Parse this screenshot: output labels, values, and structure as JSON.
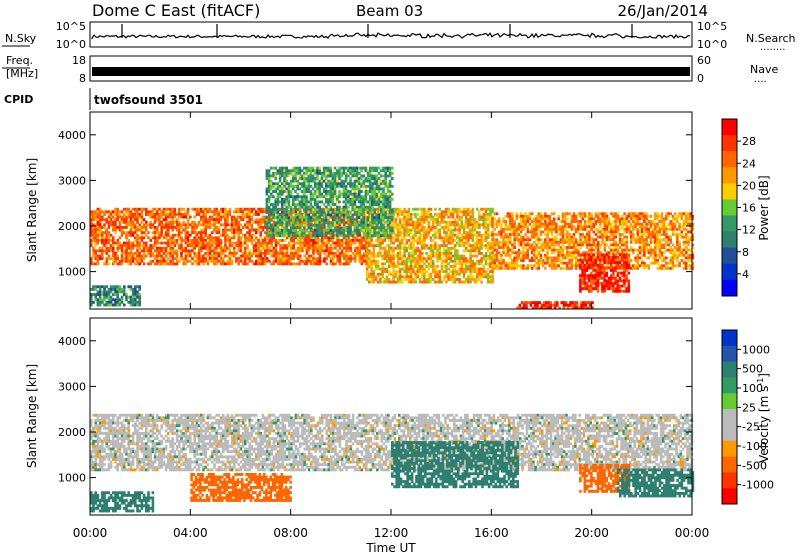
{
  "header": {
    "station": "Dome C East (fitACF)",
    "beam": "Beam 03",
    "date": "26/Jan/2014"
  },
  "nsky_panel": {
    "label": "N.Sky",
    "ticks_left": [
      "10^5",
      "10^0"
    ],
    "ticks_right": [
      "10^5",
      "10^0"
    ],
    "right_label": "N.Search",
    "right_dots": "........"
  },
  "freq_panel": {
    "label_line1": "Freq.",
    "label_line2": "[MHz]",
    "ticks_left": [
      "18",
      "8"
    ],
    "ticks_right": [
      "60",
      "0"
    ],
    "right_label": "Nave",
    "right_dots": "...."
  },
  "cpid_panel": {
    "label": "CPID",
    "program": "twofsound 3501"
  },
  "power_panel": {
    "ylabel": "Slant Range [km]",
    "yticks": [
      "4000",
      "3000",
      "2000",
      "1000"
    ],
    "colorbar_label": "Power [dB]",
    "colorbar_ticks": [
      "28",
      "24",
      "20",
      "16",
      "12",
      "8",
      "4"
    ],
    "colorbar_colors": [
      "#ff0000",
      "#ff3300",
      "#ff6600",
      "#ff9900",
      "#ffcc00",
      "#66cc33",
      "#339966",
      "#2d7f6f",
      "#224f94",
      "#0033cc",
      "#0000ff"
    ]
  },
  "velocity_panel": {
    "ylabel": "Slant Range [km]",
    "yticks": [
      "4000",
      "3000",
      "2000",
      "1000"
    ],
    "colorbar_label": "Velocity [m s",
    "colorbar_label_sup": "-1",
    "colorbar_label_close": "]",
    "colorbar_ticks": [
      "1000",
      "500",
      "100",
      "25",
      "-25",
      "-100",
      "-500",
      "-1000"
    ],
    "colorbar_colors": [
      "#0033cc",
      "#2255aa",
      "#2d7f6f",
      "#339966",
      "#66cc33",
      "#bbbbbb",
      "#bbbbbb",
      "#ff9900",
      "#ff6600",
      "#ff3300",
      "#ff0000"
    ]
  },
  "xaxis": {
    "ticks": [
      "00:00",
      "04:00",
      "08:00",
      "12:00",
      "16:00",
      "20:00",
      "00:00"
    ],
    "label": "Time UT"
  },
  "chart_data": {
    "type": "heatmap",
    "title": "Dome C East (fitACF) Beam 03 26/Jan/2014",
    "xlabel": "Time UT",
    "ylabel": "Slant Range [km]",
    "x_range_hours": [
      0,
      24
    ],
    "y_range_km": [
      180,
      4500
    ],
    "panels": [
      {
        "name": "Power",
        "units": "dB",
        "colorbar_range": [
          0,
          30
        ],
        "regions": [
          {
            "t": [
              0,
              11
            ],
            "r": [
              1200,
              2400
            ],
            "value": 24
          },
          {
            "t": [
              11,
              16
            ],
            "r": [
              800,
              2400
            ],
            "value": 20
          },
          {
            "t": [
              16,
              24
            ],
            "r": [
              1100,
              2300
            ],
            "value": 22
          },
          {
            "t": [
              19.5,
              21.5
            ],
            "r": [
              600,
              1400
            ],
            "value": 28
          },
          {
            "t": [
              7,
              12
            ],
            "r": [
              1800,
              3300
            ],
            "value": 12
          },
          {
            "t": [
              0,
              2
            ],
            "r": [
              300,
              700
            ],
            "value": 10
          },
          {
            "t": [
              17,
              20
            ],
            "r": [
              200,
              350
            ],
            "value": 28
          }
        ]
      },
      {
        "name": "Velocity",
        "units": "m s^-1",
        "colorbar_range": [
          -1000,
          1000
        ],
        "regions": [
          {
            "t": [
              0,
              24
            ],
            "r": [
              1200,
              2400
            ],
            "value": 0
          },
          {
            "t": [
              4,
              8
            ],
            "r": [
              500,
              1100
            ],
            "value": -300
          },
          {
            "t": [
              19.5,
              21.5
            ],
            "r": [
              700,
              1300
            ],
            "value": -300
          },
          {
            "t": [
              12,
              17
            ],
            "r": [
              800,
              1800
            ],
            "value": 200
          },
          {
            "t": [
              0,
              2.5
            ],
            "r": [
              300,
              700
            ],
            "value": 100
          },
          {
            "t": [
              21,
              24
            ],
            "r": [
              600,
              1200
            ],
            "value": 200
          }
        ]
      }
    ]
  }
}
